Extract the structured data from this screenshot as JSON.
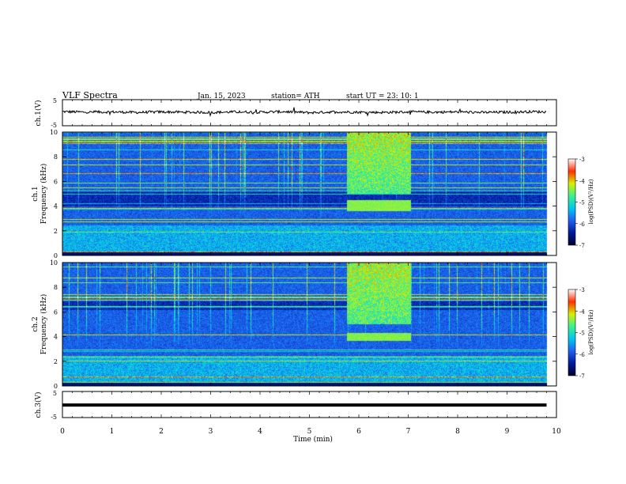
{
  "header": {
    "title": "VLF  Spectra",
    "date": "Jan.  15,  2023",
    "station": "station= ATH",
    "start_ut": "start  UT  =    23: 10: 1"
  },
  "colors": {
    "trace": "#000000",
    "axis": "#000000",
    "colormap": [
      "#00002a",
      "#001a9a",
      "#1f60f0",
      "#00c8f0",
      "#3cf08c",
      "#d6f000",
      "#ff3000",
      "#ffffff"
    ]
  },
  "chart_data": [
    {
      "type": "line",
      "panel": "ch1-waveform",
      "ylabel": "ch.1(V)",
      "ylim": [
        -5,
        5
      ],
      "yticks": [
        "5",
        "-5"
      ],
      "xlim": [
        0,
        10
      ],
      "x": [
        0,
        0.5,
        1,
        1.5,
        2,
        2.5,
        3,
        3.5,
        4,
        4.5,
        5,
        5.5,
        6,
        6.5,
        7,
        7.5,
        8,
        8.5,
        9,
        9.5,
        9.8
      ],
      "values": [
        0.4,
        0.2,
        0.3,
        0.1,
        0.3,
        0.2,
        0.1,
        0.3,
        0.2,
        0.4,
        0.0,
        0.3,
        0.2,
        0.1,
        0.3,
        0.2,
        0.3,
        0.1,
        0.2,
        0.4,
        0.3
      ]
    },
    {
      "type": "heatmap",
      "panel": "ch1-spectrogram",
      "ylabel_top": "ch.1",
      "ylabel": "Frequency (kHz)",
      "ylim": [
        0,
        10
      ],
      "yticks": [
        "0",
        "2",
        "4",
        "6",
        "8",
        "10"
      ],
      "xlim": [
        0,
        10
      ],
      "data_end_min": 9.8,
      "z_range": [
        -7,
        -3
      ],
      "colorbar_label": "log(PSD)(V²/Hz)",
      "colorbar_ticks": [
        "-3",
        "-4",
        "-5",
        "-6",
        "-7"
      ],
      "features": {
        "band_time_min": [
          5.75,
          7.05
        ],
        "band_freq_khz": [
          3.6,
          4.5
        ],
        "broadband_freq_khz": [
          5.0,
          10.0
        ],
        "dark_band_freq_khz": [
          4.0,
          5.3
        ]
      }
    },
    {
      "type": "heatmap",
      "panel": "ch2-spectrogram",
      "ylabel_top": "ch.2",
      "ylabel": "Frequency (kHz)",
      "ylim": [
        0,
        10
      ],
      "yticks": [
        "0",
        "2",
        "4",
        "6",
        "8",
        "10"
      ],
      "xlim": [
        0,
        10
      ],
      "data_end_min": 9.8,
      "z_range": [
        -7,
        -3
      ],
      "colorbar_label": "log(PSD)(V²/Hz)",
      "colorbar_ticks": [
        "-3",
        "-4",
        "-5",
        "-6",
        "-7"
      ],
      "features": {
        "band_time_min": [
          5.75,
          7.05
        ],
        "band_freq_khz": [
          3.7,
          4.3
        ],
        "broadband_freq_khz": [
          5.0,
          10.0
        ],
        "dark_band_freq_khz": [
          6.2,
          6.9
        ]
      }
    },
    {
      "type": "line",
      "panel": "ch3-waveform",
      "ylabel": "ch.3(V)",
      "ylim": [
        -5,
        5
      ],
      "yticks": [
        "5",
        "-5"
      ],
      "xlim": [
        0,
        10
      ],
      "x": [
        0,
        9.8
      ],
      "values": [
        -0.2,
        -0.2
      ]
    }
  ],
  "xaxis": {
    "label": "Time  (min)",
    "ticks": [
      "0",
      "1",
      "2",
      "3",
      "4",
      "5",
      "6",
      "7",
      "8",
      "9",
      "10"
    ],
    "range": [
      0,
      10
    ]
  }
}
